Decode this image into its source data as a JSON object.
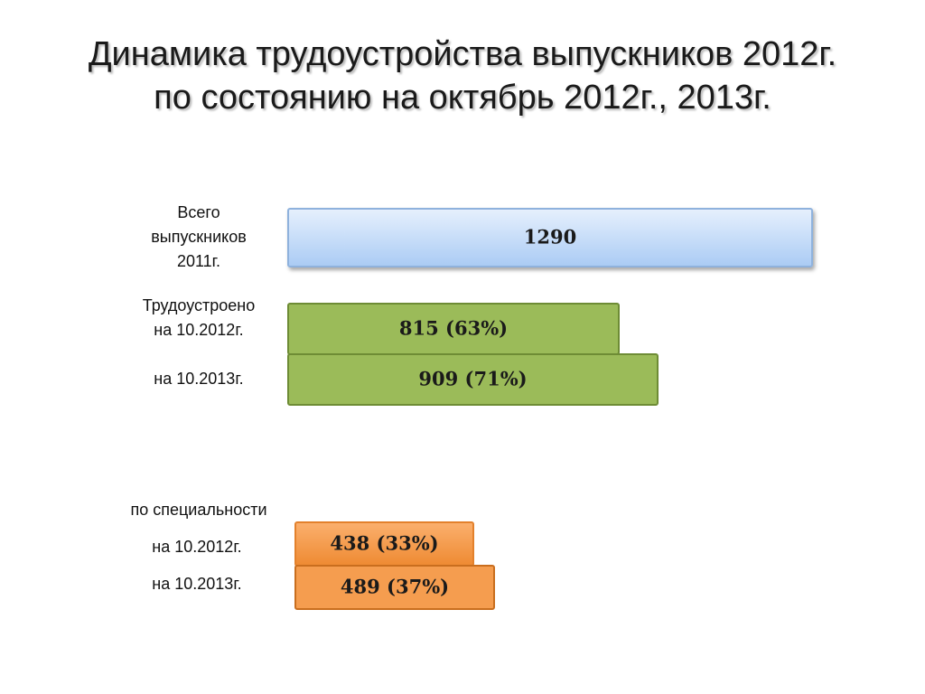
{
  "title_lines": [
    "Динамика трудоустройства выпускников  2012г.",
    "по состоянию на октябрь 2012г., 2013г."
  ],
  "labels": {
    "total": [
      "Всего",
      "выпускников",
      "2011г."
    ],
    "employed": [
      "Трудоустроено",
      "на 10.2012г."
    ],
    "employed_2013": "на 10.2013г.",
    "specialty_header": "по специальности",
    "specialty_2012": "на 10.2012г.",
    "specialty_2013": "на 10.2013г."
  },
  "colors": {
    "total": "#bcd6f7",
    "employed": "#9bbb59",
    "specialty": "#f59d4f"
  },
  "chart_data": {
    "type": "bar",
    "orientation": "horizontal",
    "title": "Динамика трудоустройства выпускников  2012г. по состоянию на октябрь 2012г., 2013г.",
    "bars": [
      {
        "group": "total",
        "value": 1290,
        "label": "1290"
      },
      {
        "group": "employed",
        "value": 815,
        "percent": 63,
        "label": "815 (63%)"
      },
      {
        "group": "employed",
        "value": 909,
        "percent": 71,
        "label": "909 (71%)"
      },
      {
        "group": "specialty",
        "value": 438,
        "percent": 33,
        "label": "438  (33%)"
      },
      {
        "group": "specialty",
        "value": 489,
        "percent": 37,
        "label": "489 (37%)"
      }
    ],
    "grid": false,
    "axes": false,
    "legend": "none"
  }
}
